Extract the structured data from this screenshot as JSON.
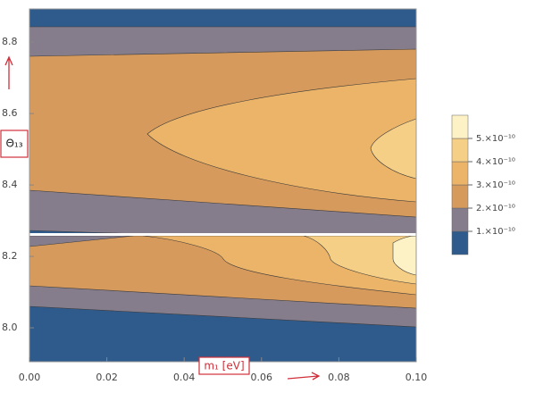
{
  "chart_data": {
    "type": "contour",
    "xlim": [
      0,
      0.1
    ],
    "ylim": [
      7.905,
      8.893
    ],
    "xticks": [
      {
        "value": 0,
        "label": "0.00"
      },
      {
        "value": 0.02,
        "label": "0.02"
      },
      {
        "value": 0.04,
        "label": "0.04"
      },
      {
        "value": 0.06,
        "label": "0.06"
      },
      {
        "value": 0.08,
        "label": "0.08"
      },
      {
        "value": 0.1,
        "label": "0.10"
      }
    ],
    "yticks": [
      {
        "value": 8,
        "label": "8.0"
      },
      8.2,
      8.4,
      8.6,
      8.8
    ],
    "levels": [
      {
        "value": 1e-10,
        "label": "1.×10⁻¹⁰"
      },
      {
        "value": 2e-10,
        "label": "2.×10⁻¹⁰"
      },
      {
        "value": 3e-10,
        "label": "3.×10⁻¹⁰"
      },
      {
        "value": 4e-10,
        "label": "4.×10⁻¹⁰"
      },
      {
        "value": 5e-10,
        "label": "5.×10⁻¹⁰"
      }
    ],
    "band_colors": [
      "#2f5b8c",
      "#867d8c",
      "#d69a5c",
      "#ebb468",
      "#f6cf87",
      "#fdf1c6"
    ],
    "annotations": [
      "m₁ [eV]",
      "Θ₁₃"
    ]
  }
}
